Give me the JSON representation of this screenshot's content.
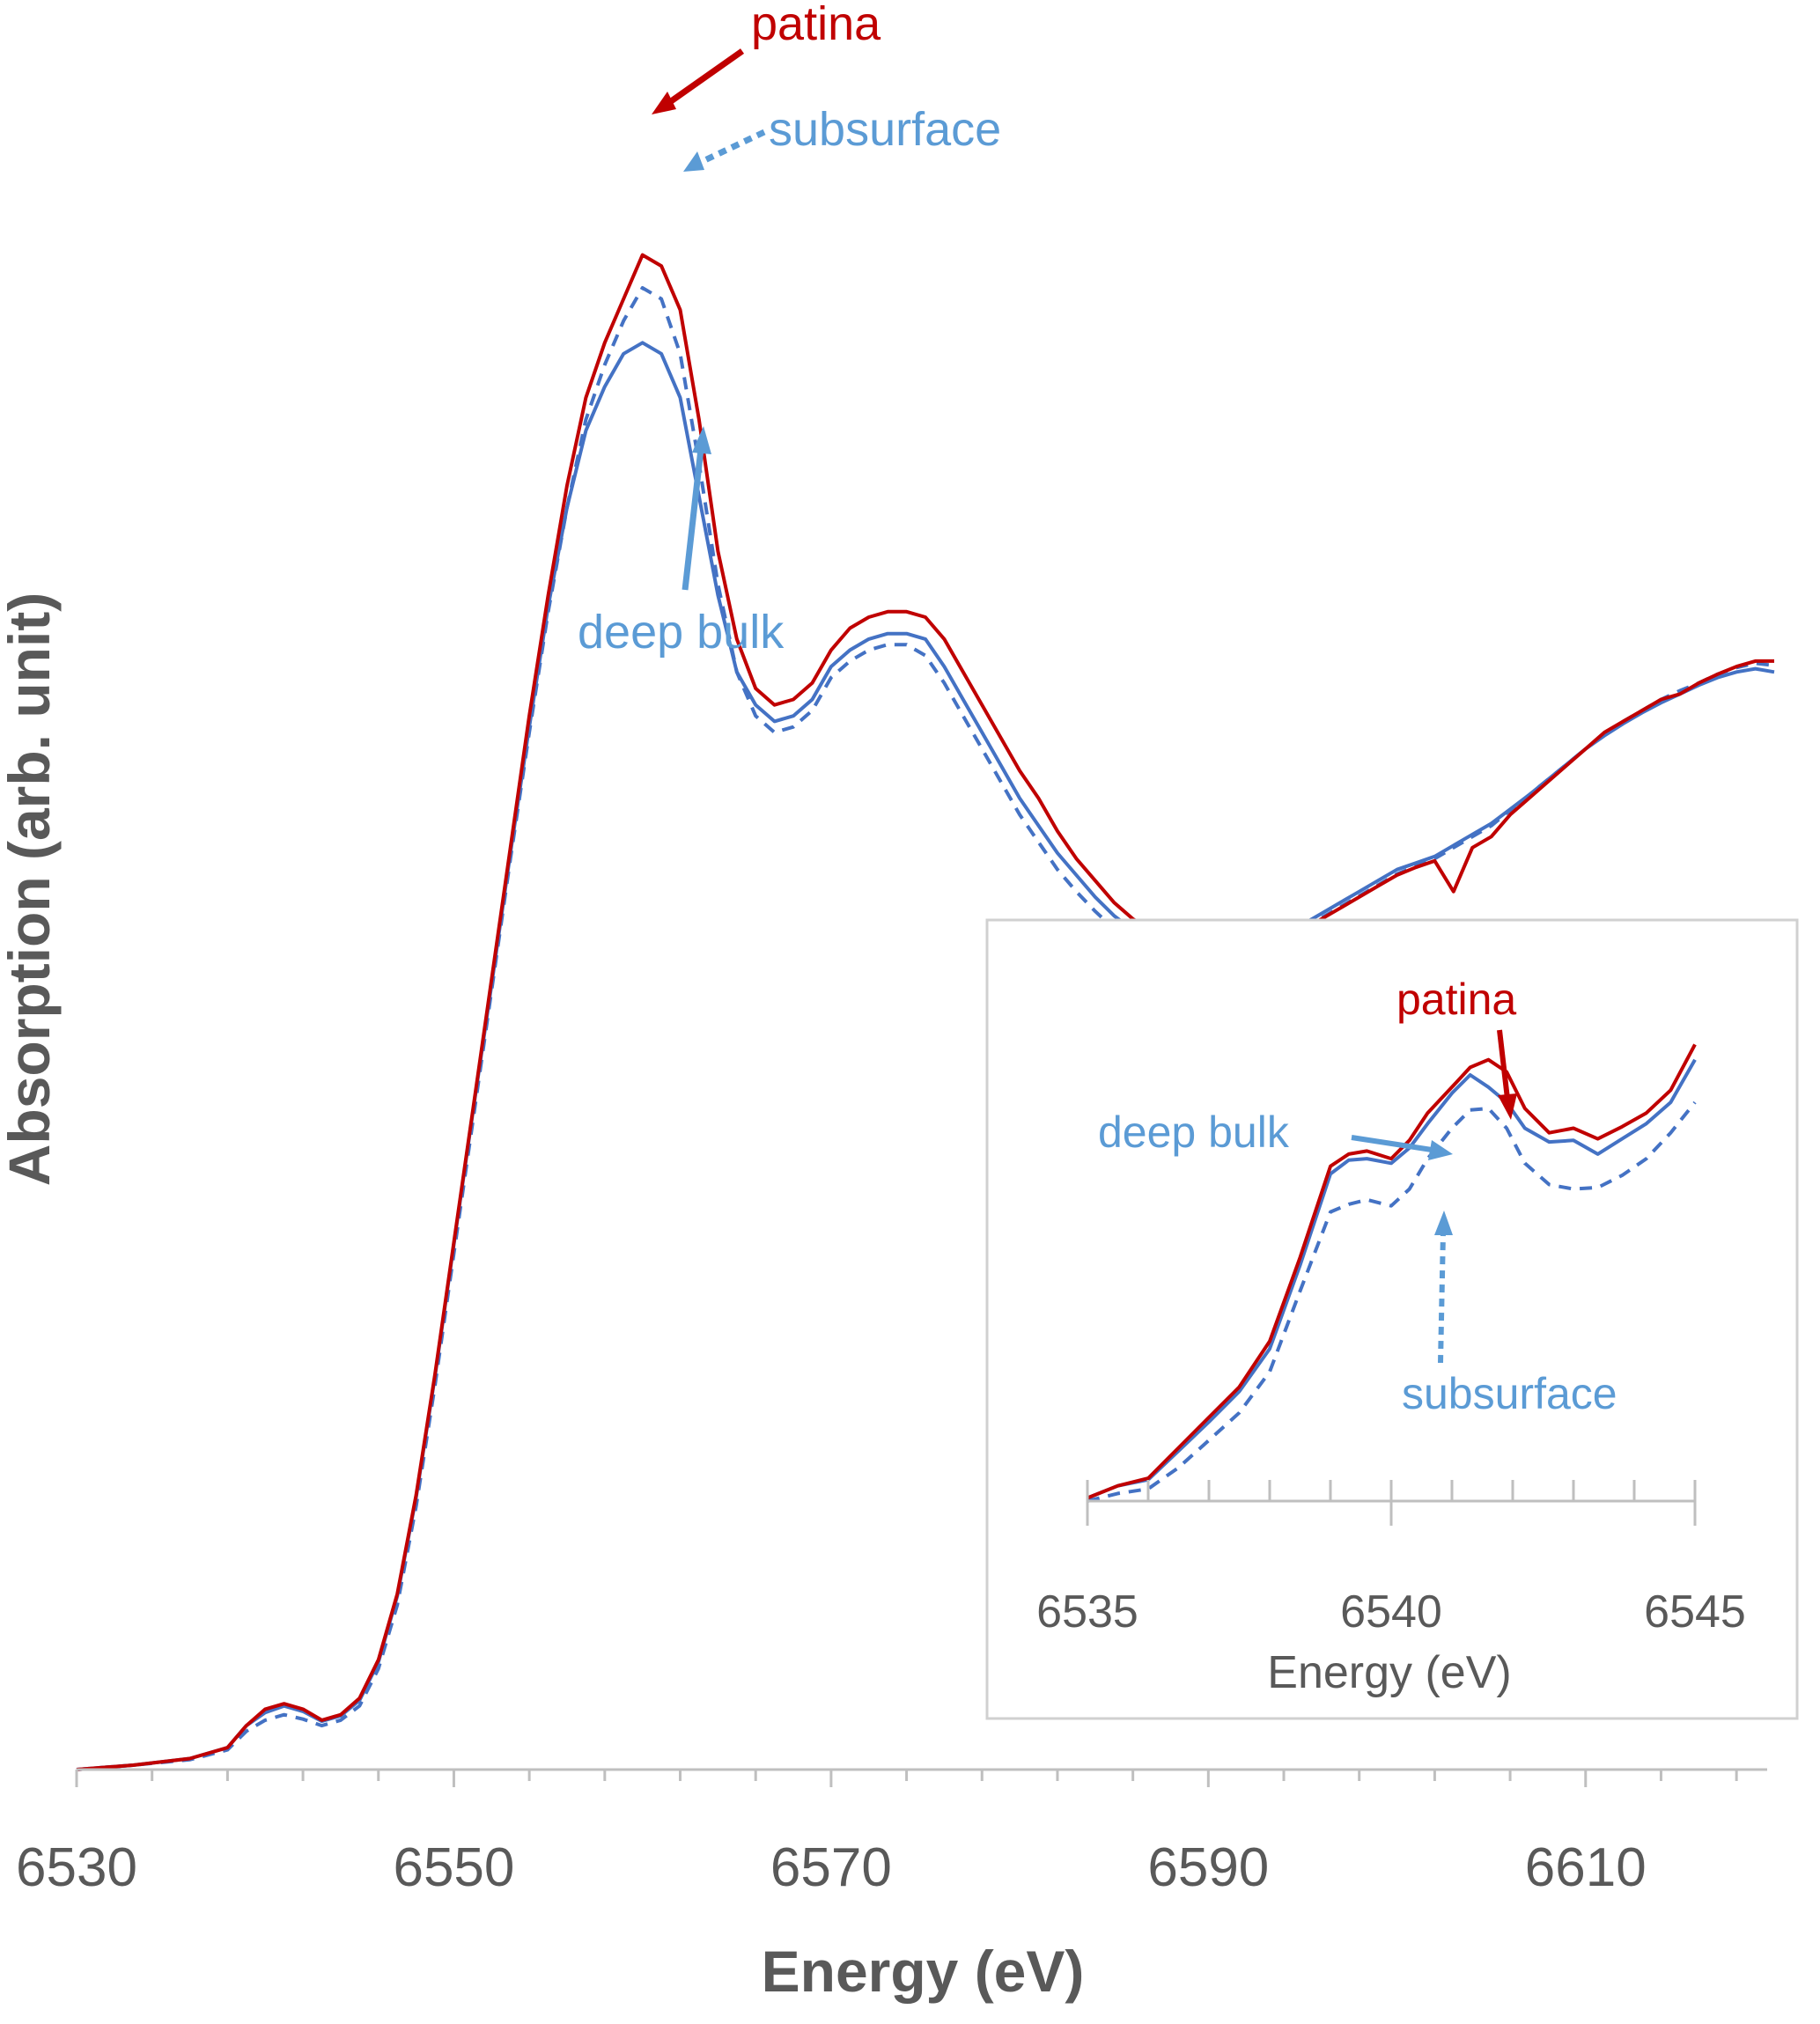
{
  "chart_data": [
    {
      "type": "line",
      "xlabel": "Energy (eV)",
      "ylabel": "Absorption (arb. unit)",
      "xlim": [
        6530,
        6620
      ],
      "ylim": [
        0,
        1.5
      ],
      "xticks": [
        6530,
        6550,
        6570,
        6590,
        6610
      ],
      "colors": {
        "patina": "#C00000",
        "deep_bulk": "#4472C4",
        "subsurface": "#4472C4",
        "annotation_blue": "#5B9BD5"
      },
      "annotations": [
        {
          "text": "patina",
          "x": 6560.3,
          "y": 1.39
        },
        {
          "text": "subsurface",
          "x": 6562.3,
          "y": 1.33
        },
        {
          "text": "deep bulk",
          "x": 6563.5,
          "y": 1.05
        }
      ],
      "series": [
        {
          "name": "patina",
          "style": "solid",
          "x": [
            6530,
            6533,
            6536,
            6538,
            6539,
            6540,
            6541,
            6542,
            6543,
            6544,
            6545,
            6546,
            6547,
            6548,
            6549,
            6550,
            6551,
            6552,
            6553,
            6554,
            6555,
            6556,
            6557,
            6558,
            6559,
            6560,
            6561,
            6562,
            6563,
            6564,
            6565,
            6566,
            6567,
            6568,
            6569,
            6570,
            6571,
            6572,
            6573,
            6574,
            6575,
            6576,
            6577,
            6578,
            6579,
            6580,
            6581,
            6582,
            6583,
            6584,
            6585,
            6586,
            6587,
            6588,
            6589,
            6590,
            6591,
            6592,
            6593,
            6594,
            6595,
            6596,
            6597,
            6598,
            6599,
            6600,
            6601,
            6602,
            6603,
            6604,
            6605,
            6606,
            6607,
            6608,
            6609,
            6610,
            6611,
            6612,
            6613,
            6614,
            6615,
            6616,
            6617,
            6618,
            6619,
            6620
          ],
          "y": [
            0.0,
            0.004,
            0.01,
            0.02,
            0.04,
            0.055,
            0.06,
            0.055,
            0.045,
            0.05,
            0.065,
            0.1,
            0.16,
            0.25,
            0.36,
            0.48,
            0.6,
            0.72,
            0.84,
            0.96,
            1.07,
            1.17,
            1.25,
            1.3,
            1.34,
            1.38,
            1.37,
            1.33,
            1.23,
            1.11,
            1.03,
            0.985,
            0.97,
            0.975,
            0.99,
            1.02,
            1.04,
            1.05,
            1.055,
            1.055,
            1.05,
            1.03,
            1.0,
            0.97,
            0.94,
            0.91,
            0.885,
            0.855,
            0.83,
            0.81,
            0.79,
            0.775,
            0.765,
            0.758,
            0.752,
            0.75,
            0.75,
            0.752,
            0.755,
            0.76,
            0.765,
            0.775,
            0.785,
            0.795,
            0.805,
            0.815,
            0.822,
            0.828,
            0.8,
            0.84,
            0.85,
            0.87,
            0.885,
            0.9,
            0.915,
            0.93,
            0.945,
            0.955,
            0.965,
            0.975,
            0.98,
            0.99,
            0.998,
            1.005,
            1.01,
            1.01
          ]
        },
        {
          "name": "deep bulk",
          "style": "solid",
          "x": [
            6530,
            6533,
            6536,
            6538,
            6539,
            6540,
            6541,
            6542,
            6543,
            6544,
            6545,
            6546,
            6547,
            6548,
            6549,
            6550,
            6551,
            6552,
            6553,
            6554,
            6555,
            6556,
            6557,
            6558,
            6559,
            6560,
            6561,
            6562,
            6563,
            6564,
            6565,
            6566,
            6567,
            6568,
            6569,
            6570,
            6571,
            6572,
            6573,
            6574,
            6575,
            6576,
            6577,
            6578,
            6579,
            6580,
            6581,
            6582,
            6583,
            6584,
            6585,
            6586,
            6587,
            6588,
            6589,
            6590,
            6591,
            6592,
            6593,
            6594,
            6595,
            6596,
            6597,
            6598,
            6599,
            6600,
            6601,
            6602,
            6603,
            6604,
            6605,
            6606,
            6607,
            6608,
            6609,
            6610,
            6611,
            6612,
            6613,
            6614,
            6615,
            6616,
            6617,
            6618,
            6619,
            6620
          ],
          "y": [
            0.0,
            0.004,
            0.01,
            0.02,
            0.04,
            0.052,
            0.058,
            0.053,
            0.044,
            0.049,
            0.063,
            0.098,
            0.158,
            0.248,
            0.358,
            0.478,
            0.598,
            0.715,
            0.835,
            0.95,
            1.06,
            1.15,
            1.22,
            1.26,
            1.29,
            1.3,
            1.29,
            1.25,
            1.16,
            1.07,
            1.0,
            0.97,
            0.955,
            0.96,
            0.975,
            1.005,
            1.02,
            1.03,
            1.035,
            1.035,
            1.03,
            1.005,
            0.975,
            0.945,
            0.915,
            0.885,
            0.86,
            0.835,
            0.815,
            0.795,
            0.778,
            0.765,
            0.757,
            0.752,
            0.748,
            0.747,
            0.748,
            0.751,
            0.756,
            0.763,
            0.77,
            0.78,
            0.79,
            0.8,
            0.81,
            0.82,
            0.826,
            0.832,
            0.842,
            0.852,
            0.862,
            0.875,
            0.888,
            0.902,
            0.916,
            0.93,
            0.942,
            0.953,
            0.963,
            0.972,
            0.98,
            0.988,
            0.995,
            1.0,
            1.003,
            1.0
          ]
        },
        {
          "name": "subsurface",
          "style": "dashed",
          "x": [
            6530,
            6533,
            6536,
            6538,
            6539,
            6540,
            6541,
            6542,
            6543,
            6544,
            6545,
            6546,
            6547,
            6548,
            6549,
            6550,
            6551,
            6552,
            6553,
            6554,
            6555,
            6556,
            6557,
            6558,
            6559,
            6560,
            6561,
            6562,
            6563,
            6564,
            6565,
            6566,
            6567,
            6568,
            6569,
            6570,
            6571,
            6572,
            6573,
            6574,
            6575,
            6576,
            6577,
            6578,
            6579,
            6580,
            6581,
            6582,
            6583,
            6584,
            6585,
            6586,
            6587,
            6588,
            6589,
            6590,
            6591,
            6592,
            6593,
            6594,
            6595,
            6596,
            6597,
            6598,
            6599,
            6600,
            6601,
            6602,
            6603,
            6604,
            6605,
            6606,
            6607,
            6608,
            6609,
            6610,
            6611,
            6612,
            6613,
            6614,
            6615,
            6616,
            6617,
            6618,
            6619,
            6620
          ],
          "y": [
            0.0,
            0.004,
            0.009,
            0.018,
            0.035,
            0.045,
            0.05,
            0.046,
            0.04,
            0.045,
            0.058,
            0.092,
            0.15,
            0.24,
            0.35,
            0.47,
            0.59,
            0.71,
            0.83,
            0.945,
            1.055,
            1.15,
            1.23,
            1.28,
            1.32,
            1.35,
            1.34,
            1.29,
            1.19,
            1.08,
            1.0,
            0.96,
            0.945,
            0.95,
            0.965,
            0.995,
            1.01,
            1.02,
            1.025,
            1.025,
            1.015,
            0.99,
            0.96,
            0.93,
            0.9,
            0.87,
            0.845,
            0.82,
            0.8,
            0.782,
            0.766,
            0.754,
            0.746,
            0.741,
            0.738,
            0.738,
            0.74,
            0.744,
            0.75,
            0.758,
            0.766,
            0.776,
            0.786,
            0.796,
            0.806,
            0.816,
            0.823,
            0.83,
            0.84,
            0.85,
            0.86,
            0.874,
            0.888,
            0.902,
            0.916,
            0.93,
            0.943,
            0.955,
            0.965,
            0.975,
            0.983,
            0.99,
            0.998,
            1.004,
            1.008,
            1.006
          ]
        }
      ]
    },
    {
      "type": "line",
      "xlabel": "Energy (eV)",
      "xlim": [
        6535,
        6545
      ],
      "xticks": [
        6535,
        6540,
        6545
      ],
      "ylim": [
        0,
        0.35
      ],
      "annotations": [
        {
          "text": "patina",
          "x": 6541.8,
          "y": 0.29
        },
        {
          "text": "deep bulk",
          "x": 6540.9,
          "y": 0.267
        },
        {
          "text": "subsurface",
          "x": 6540.9,
          "y": 0.22
        }
      ],
      "series": [
        {
          "name": "patina",
          "style": "solid",
          "x": [
            6535,
            6535.5,
            6536,
            6536.5,
            6537,
            6537.5,
            6538,
            6538.5,
            6539,
            6539.3,
            6539.6,
            6540,
            6540.3,
            6540.6,
            6541,
            6541.3,
            6541.6,
            6541.9,
            6542.2,
            6542.6,
            6543,
            6543.4,
            6543.8,
            6544.2,
            6544.6,
            6545
          ],
          "y": [
            0.002,
            0.01,
            0.015,
            0.035,
            0.055,
            0.075,
            0.105,
            0.16,
            0.22,
            0.228,
            0.23,
            0.225,
            0.237,
            0.255,
            0.272,
            0.285,
            0.29,
            0.282,
            0.258,
            0.242,
            0.245,
            0.238,
            0.246,
            0.255,
            0.27,
            0.3
          ]
        },
        {
          "name": "deep bulk",
          "style": "solid",
          "x": [
            6535,
            6535.5,
            6536,
            6536.5,
            6537,
            6537.5,
            6538,
            6538.5,
            6539,
            6539.3,
            6539.6,
            6540,
            6540.3,
            6540.6,
            6541,
            6541.3,
            6541.6,
            6541.9,
            6542.2,
            6542.6,
            6543,
            6543.4,
            6543.8,
            6544.2,
            6544.6,
            6545
          ],
          "y": [
            0.002,
            0.01,
            0.014,
            0.033,
            0.052,
            0.072,
            0.1,
            0.155,
            0.215,
            0.224,
            0.225,
            0.222,
            0.232,
            0.248,
            0.268,
            0.28,
            0.272,
            0.262,
            0.245,
            0.236,
            0.237,
            0.228,
            0.238,
            0.248,
            0.262,
            0.29
          ]
        },
        {
          "name": "subsurface",
          "style": "dashed",
          "x": [
            6535,
            6535.5,
            6536,
            6536.5,
            6537,
            6537.5,
            6538,
            6538.5,
            6539,
            6539.3,
            6539.6,
            6540,
            6540.3,
            6540.6,
            6541,
            6541.3,
            6541.6,
            6541.9,
            6542.2,
            6542.6,
            6543,
            6543.4,
            6543.8,
            6544.2,
            6544.6,
            6545
          ],
          "y": [
            0.0,
            0.005,
            0.008,
            0.022,
            0.04,
            0.058,
            0.085,
            0.138,
            0.19,
            0.195,
            0.198,
            0.194,
            0.205,
            0.225,
            0.245,
            0.257,
            0.258,
            0.245,
            0.222,
            0.208,
            0.205,
            0.206,
            0.214,
            0.225,
            0.242,
            0.262
          ]
        }
      ]
    }
  ]
}
